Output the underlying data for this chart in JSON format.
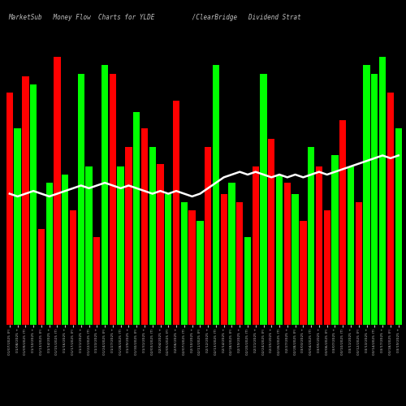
{
  "title": "MarketSub   Money Flow  Charts for YLDE          /ClearBridge   Dividend Strat",
  "background_color": "#000000",
  "bar_color_positive": "#00ff00",
  "bar_color_negative": "#ff0000",
  "line_color": "#ffffff",
  "text_color": "#c0c0c0",
  "values": [
    8.5,
    7.2,
    9.1,
    8.8,
    3.5,
    5.2,
    9.8,
    5.5,
    4.2,
    9.2,
    5.8,
    3.2,
    9.5,
    9.2,
    5.8,
    6.5,
    7.8,
    7.2,
    6.5,
    5.9,
    4.8,
    8.2,
    4.5,
    4.2,
    3.8,
    6.5,
    9.5,
    4.8,
    5.2,
    4.5,
    3.2,
    5.8,
    9.2,
    6.8,
    5.5,
    5.2,
    4.8,
    3.8,
    6.5,
    5.8,
    4.2,
    6.2,
    7.5,
    5.8,
    4.5,
    9.5,
    9.2,
    9.8,
    8.5,
    7.2
  ],
  "colors": [
    "r",
    "g",
    "r",
    "g",
    "r",
    "g",
    "r",
    "g",
    "r",
    "g",
    "g",
    "r",
    "g",
    "r",
    "g",
    "r",
    "g",
    "r",
    "g",
    "r",
    "g",
    "r",
    "g",
    "r",
    "g",
    "r",
    "g",
    "r",
    "g",
    "r",
    "g",
    "r",
    "g",
    "r",
    "g",
    "r",
    "g",
    "r",
    "g",
    "r",
    "r",
    "g",
    "r",
    "g",
    "r",
    "g",
    "g",
    "g",
    "r",
    "g"
  ],
  "dates": [
    "01/07/2025 (F)",
    "01/08/2025 +",
    "01/09/2025 (T)",
    "01/10/2025 +",
    "01/13/2025 (F)",
    "01/14/2025 +",
    "01/15/2025 (T)",
    "01/16/2025 +",
    "01/17/2025 (F)",
    "01/21/2025 +",
    "01/22/2025 (T)",
    "01/23/2025 +",
    "01/24/2025 (F)",
    "01/27/2025 +",
    "01/28/2025 (T)",
    "01/29/2025 +",
    "01/30/2025 (F)",
    "01/31/2025 +",
    "02/03/2025 (T)",
    "02/04/2025 +",
    "02/05/2025 (F)",
    "02/06/2025 +",
    "02/07/2025 (T)",
    "02/10/2025 +",
    "02/11/2025 (F)",
    "02/12/2025 +",
    "02/13/2025 (T)",
    "02/14/2025 +",
    "02/18/2025 (F)",
    "02/19/2025 +",
    "02/20/2025 (T)",
    "02/21/2025 +",
    "02/24/2025 (F)",
    "02/25/2025 +",
    "02/26/2025 (T)",
    "02/27/2025 +",
    "02/28/2025 (F)",
    "03/03/2025 +",
    "03/04/2025 (T)",
    "03/05/2025 +",
    "03/06/2025 (F)",
    "03/07/2025 +",
    "03/10/2025 (T)",
    "03/11/2025 +",
    "03/12/2025 (F)",
    "03/13/2025 +",
    "03/14/2025 (T)",
    "03/17/2025 +",
    "03/18/2025 (F)",
    "03/19/2025 +"
  ],
  "ma_values": [
    4.8,
    4.7,
    4.8,
    4.9,
    4.8,
    4.7,
    4.8,
    4.9,
    5.0,
    5.1,
    5.0,
    5.1,
    5.2,
    5.1,
    5.0,
    5.1,
    5.0,
    4.9,
    4.8,
    4.9,
    4.8,
    4.9,
    4.8,
    4.7,
    4.8,
    5.0,
    5.2,
    5.4,
    5.5,
    5.6,
    5.5,
    5.6,
    5.5,
    5.4,
    5.5,
    5.4,
    5.5,
    5.4,
    5.5,
    5.6,
    5.5,
    5.6,
    5.7,
    5.8,
    5.9,
    6.0,
    6.1,
    6.2,
    6.1,
    6.2
  ],
  "ylim": [
    0,
    11
  ],
  "figsize": [
    5.0,
    5.0
  ],
  "dpi": 100
}
